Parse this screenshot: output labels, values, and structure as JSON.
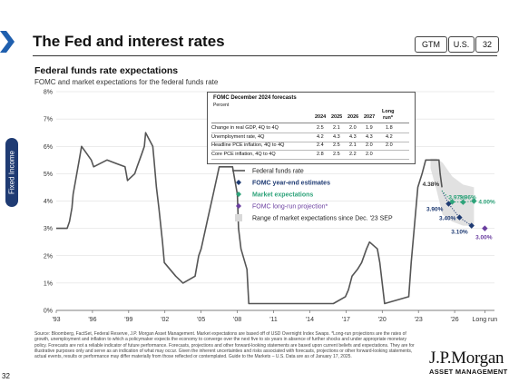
{
  "header": {
    "title": "The Fed and interest rates",
    "pills": [
      "GTM",
      "U.S.",
      "32"
    ]
  },
  "side_tab": "Fixed Income",
  "page_number": "32",
  "colors": {
    "navy": "#1f3b73",
    "rate_line": "#555555",
    "fomc_estimates": "#1f3b73",
    "market": "#2ea37a",
    "long_run": "#6b3fa0",
    "range_band": "#d9d9d9"
  },
  "chart_title": "Federal funds rate expectations",
  "chart_subtitle": "FOMC and market expectations for the federal funds rate",
  "forecast_table": {
    "title": "FOMC December 2024 forecasts",
    "unit": "Percent",
    "columns": [
      "2024",
      "2025",
      "2026",
      "2027",
      "Long run*"
    ],
    "rows": [
      {
        "label": "Change in real GDP, 4Q to 4Q",
        "values": [
          "2.5",
          "2.1",
          "2.0",
          "1.9",
          "1.8"
        ]
      },
      {
        "label": "Unemployment rate, 4Q",
        "values": [
          "4.2",
          "4.3",
          "4.3",
          "4.3",
          "4.2"
        ]
      },
      {
        "label": "Headline PCE inflation, 4Q to 4Q",
        "values": [
          "2.4",
          "2.5",
          "2.1",
          "2.0",
          "2.0"
        ]
      },
      {
        "label": "Core PCE inflation, 4Q to 4Q",
        "values": [
          "2.8",
          "2.5",
          "2.2",
          "2.0",
          ""
        ]
      }
    ]
  },
  "chart_data": {
    "type": "line",
    "title": "Federal funds rate expectations",
    "subtitle": "FOMC and market expectations for the federal funds rate",
    "x_ticks": [
      "'93",
      "'96",
      "'99",
      "'02",
      "'05",
      "'08",
      "'11",
      "'14",
      "'17",
      "'20",
      "'23",
      "'26",
      "Long run"
    ],
    "y_ticks": [
      "0%",
      "1%",
      "2%",
      "3%",
      "4%",
      "5%",
      "6%",
      "7%",
      "8%"
    ],
    "ylim": [
      0,
      8
    ],
    "xlim": [
      1993,
      2029.3
    ],
    "legend": {
      "position": "center-right",
      "entries": [
        {
          "label": "Federal funds rate",
          "kind": "line"
        },
        {
          "label": "FOMC year-end estimates",
          "kind": "diamond"
        },
        {
          "label": "Market expectations",
          "kind": "diamond"
        },
        {
          "label": "FOMC long-run projection*",
          "kind": "diamond"
        },
        {
          "label": "Range of market expectations since Dec. '23 SEP",
          "kind": "box"
        }
      ]
    },
    "series": [
      {
        "name": "Federal funds rate",
        "points": [
          [
            1993.0,
            3.0
          ],
          [
            1993.9,
            3.0
          ],
          [
            1994.1,
            3.25
          ],
          [
            1994.3,
            3.75
          ],
          [
            1994.4,
            4.25
          ],
          [
            1994.6,
            4.75
          ],
          [
            1994.9,
            5.5
          ],
          [
            1995.1,
            6.0
          ],
          [
            1995.5,
            5.75
          ],
          [
            1995.9,
            5.5
          ],
          [
            1996.1,
            5.25
          ],
          [
            1997.2,
            5.5
          ],
          [
            1998.7,
            5.25
          ],
          [
            1998.8,
            5.0
          ],
          [
            1998.9,
            4.75
          ],
          [
            1999.5,
            5.0
          ],
          [
            1999.7,
            5.25
          ],
          [
            1999.9,
            5.5
          ],
          [
            2000.1,
            5.75
          ],
          [
            2000.3,
            6.0
          ],
          [
            2000.4,
            6.5
          ],
          [
            2001.0,
            6.0
          ],
          [
            2001.1,
            5.5
          ],
          [
            2001.3,
            4.5
          ],
          [
            2001.5,
            3.75
          ],
          [
            2001.8,
            2.5
          ],
          [
            2001.95,
            1.75
          ],
          [
            2002.9,
            1.25
          ],
          [
            2003.5,
            1.0
          ],
          [
            2004.5,
            1.25
          ],
          [
            2004.8,
            2.0
          ],
          [
            2005.0,
            2.25
          ],
          [
            2005.5,
            3.25
          ],
          [
            2006.0,
            4.25
          ],
          [
            2006.5,
            5.25
          ],
          [
            2007.6,
            5.25
          ],
          [
            2007.8,
            4.75
          ],
          [
            2008.0,
            4.25
          ],
          [
            2008.1,
            3.0
          ],
          [
            2008.3,
            2.25
          ],
          [
            2008.8,
            1.5
          ],
          [
            2008.95,
            0.25
          ],
          [
            2015.95,
            0.25
          ],
          [
            2016.95,
            0.5
          ],
          [
            2017.2,
            0.75
          ],
          [
            2017.5,
            1.25
          ],
          [
            2017.95,
            1.5
          ],
          [
            2018.3,
            1.75
          ],
          [
            2018.7,
            2.25
          ],
          [
            2018.95,
            2.5
          ],
          [
            2019.6,
            2.25
          ],
          [
            2019.8,
            1.75
          ],
          [
            2020.2,
            0.25
          ],
          [
            2022.2,
            0.5
          ],
          [
            2022.4,
            1.75
          ],
          [
            2022.7,
            3.25
          ],
          [
            2022.95,
            4.5
          ],
          [
            2023.3,
            5.0
          ],
          [
            2023.6,
            5.5
          ],
          [
            2024.7,
            5.5
          ],
          [
            2024.8,
            5.0
          ],
          [
            2024.95,
            4.5
          ]
        ]
      },
      {
        "name": "FOMC year-end estimates",
        "points": [
          [
            2025.5,
            3.9
          ],
          [
            2026.4,
            3.4
          ],
          [
            2027.4,
            3.1
          ]
        ],
        "labels": [
          "3.90%",
          "3.40%",
          "3.10%"
        ]
      },
      {
        "name": "Market expectations",
        "points": [
          [
            2024.95,
            4.38
          ],
          [
            2025.8,
            3.97
          ],
          [
            2026.7,
            3.96
          ],
          [
            2027.6,
            4.0
          ]
        ],
        "labels": [
          "4.38%",
          "3.97%",
          "3.96%",
          "4.00%"
        ]
      },
      {
        "name": "FOMC long-run projection*",
        "points": [
          [
            2028.5,
            3.0
          ]
        ],
        "labels": [
          "3.00%"
        ]
      }
    ]
  },
  "footnote": "Source: Bloomberg, FactSet, Federal Reserve, J.P. Morgan Asset Management. Market expectations are based off of USD Overnight Index Swaps. *Long-run projections are the rates of growth, unemployment and inflation to which a policymaker expects the economy to converge over the next five to six years in absence of further shocks and under appropriate monetary policy. Forecasts are not a reliable indicator of future performance. Forecasts, projections and other forward-looking statements are based upon current beliefs and expectations. They are for illustrative purposes only and serve as an indication of what may occur. Given the inherent uncertainties and risks associated with forecasts, projections or other forward-looking statements, actual events, results or performance may differ materially from those reflected or contemplated. Guide to the Markets – U.S. Data are as of January 17, 2025.",
  "logo": {
    "line1": "J.P.Morgan",
    "line2": "ASSET MANAGEMENT"
  }
}
